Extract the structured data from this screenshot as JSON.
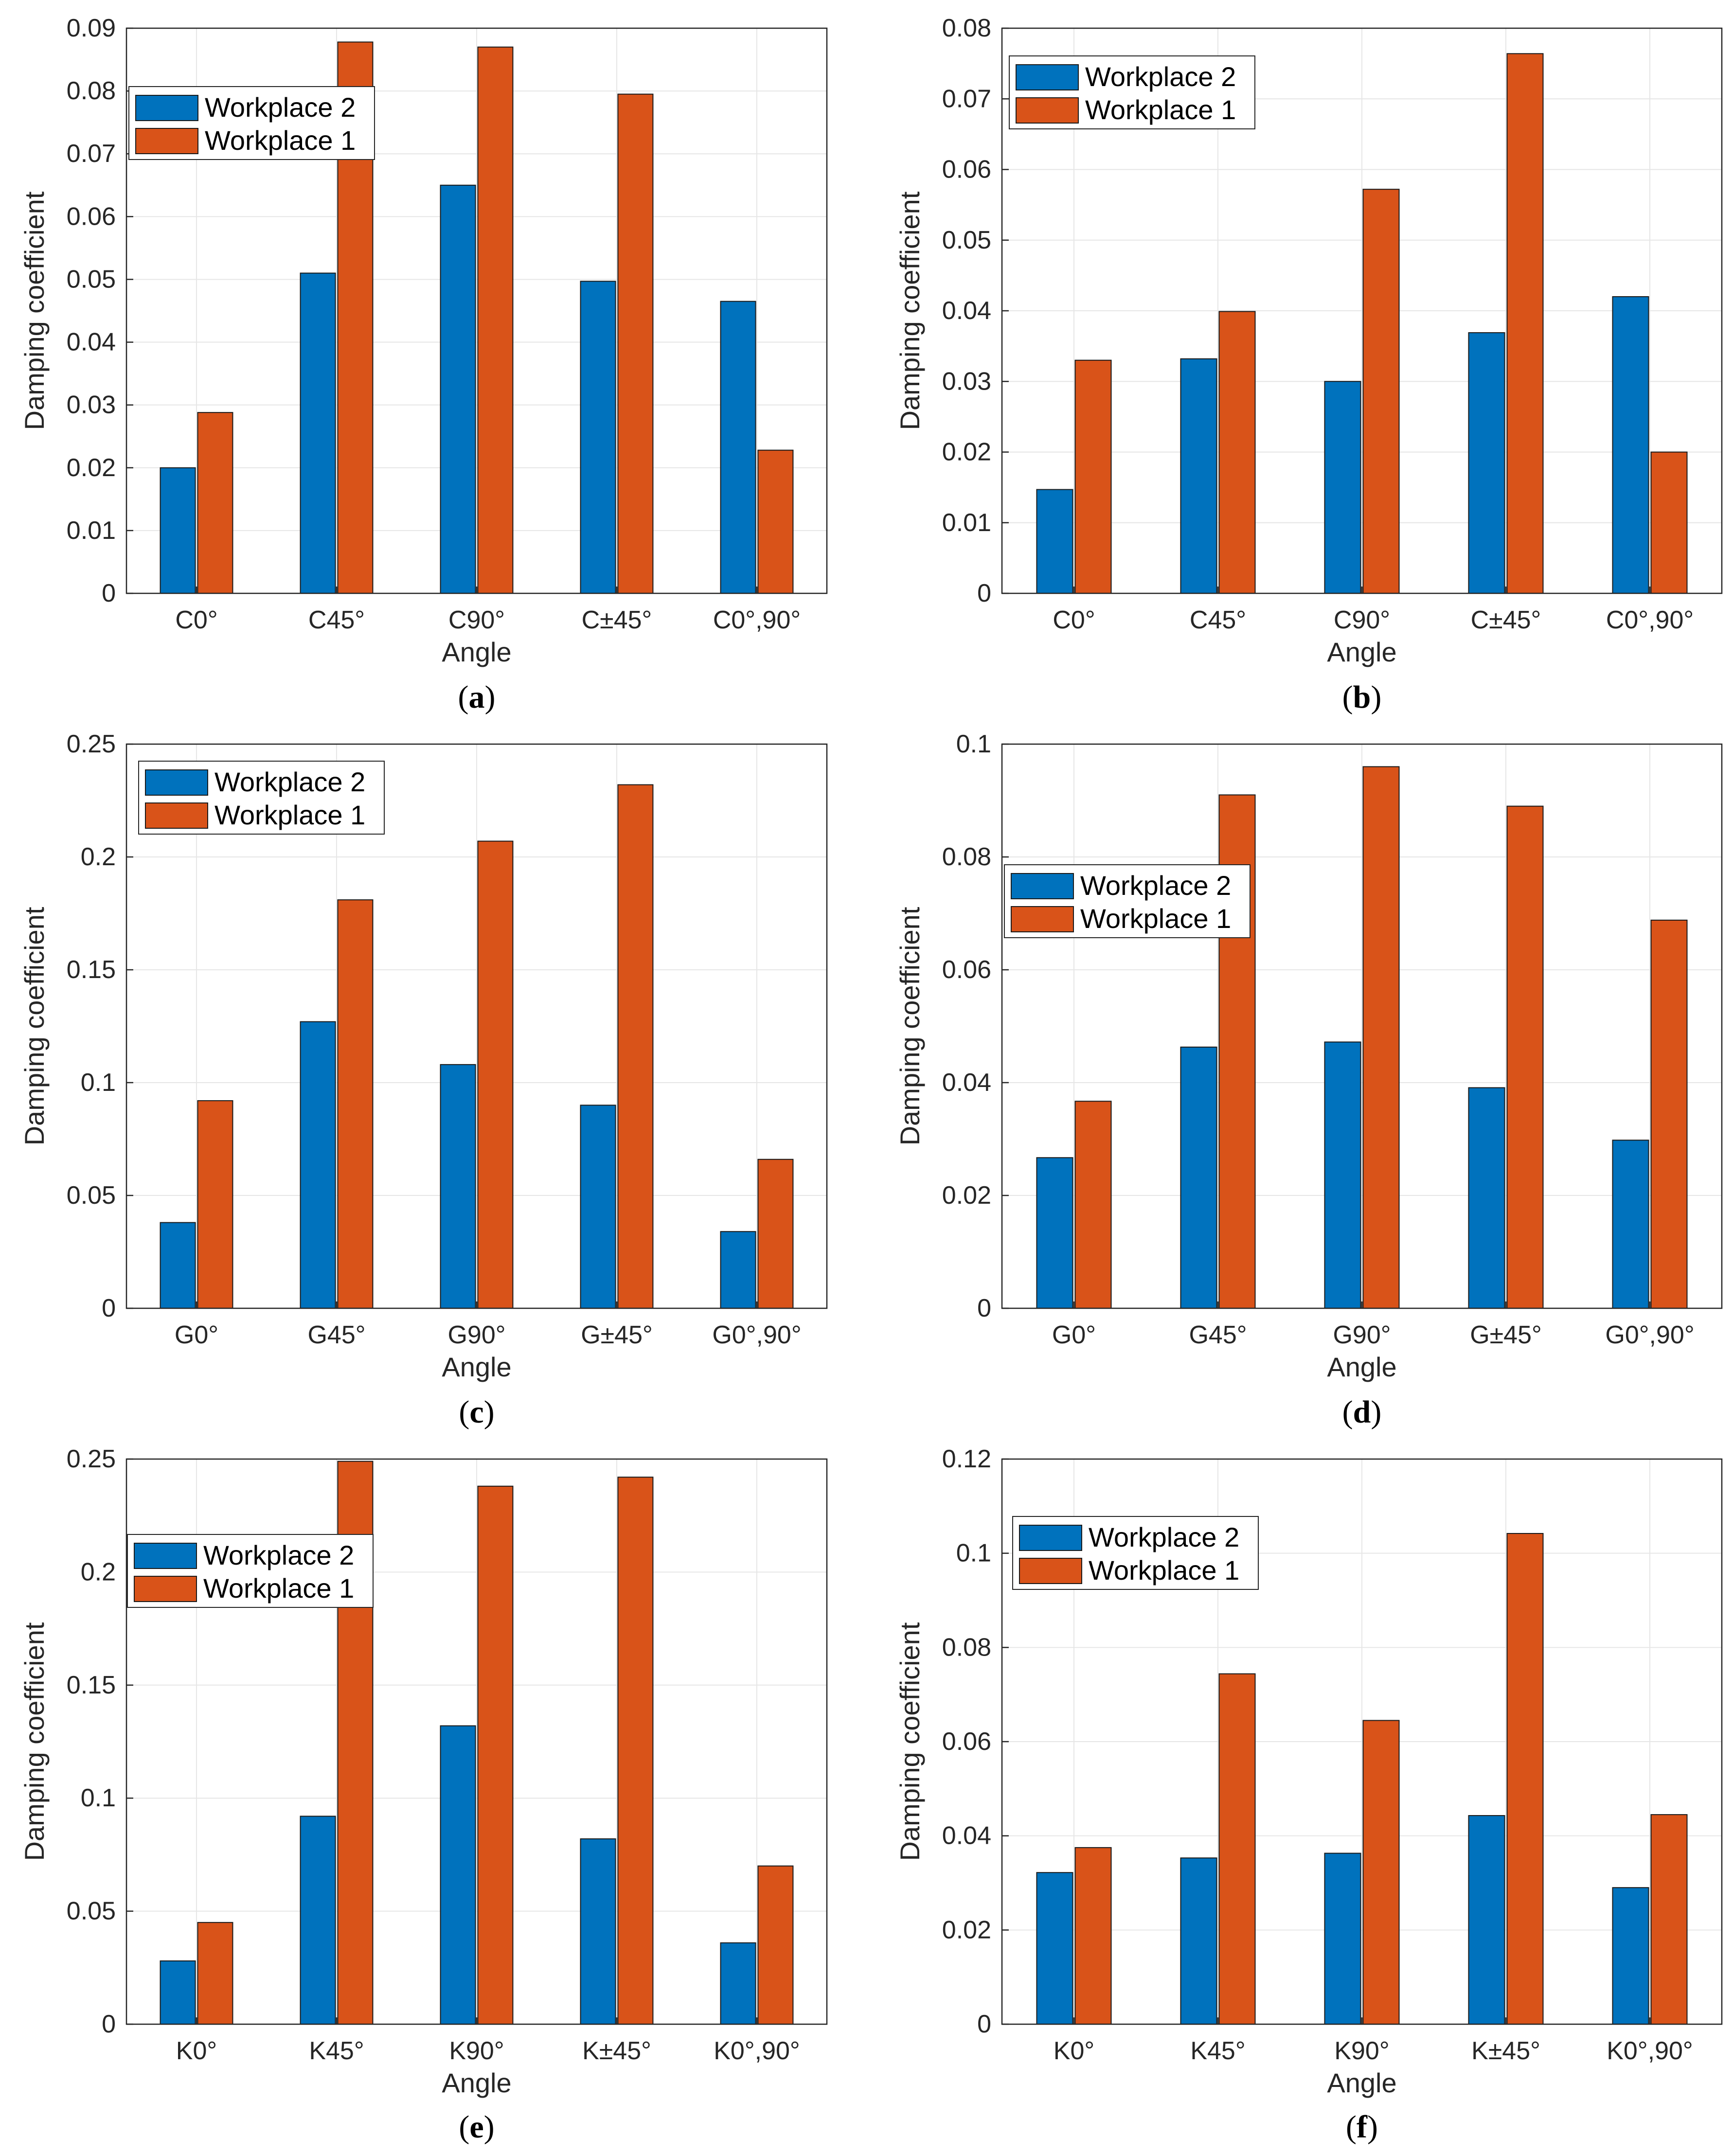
{
  "colors": {
    "workplace_2": "#0072BD",
    "workplace_1": "#D95319",
    "grid": "#e6e6e6",
    "axis": "#262626",
    "text": "#262626"
  },
  "chart_data": [
    {
      "panel": "a",
      "caption_letter": "a",
      "type": "bar",
      "xlabel": "Angle",
      "ylabel": "Damping coefficient",
      "categories": [
        "C0°",
        "C45°",
        "C90°",
        "C±45°",
        "C0°,90°"
      ],
      "series": [
        {
          "name": "Workplace 2",
          "values": [
            0.02,
            0.051,
            0.065,
            0.0497,
            0.0465
          ]
        },
        {
          "name": "Workplace 1",
          "values": [
            0.0288,
            0.0878,
            0.087,
            0.0795,
            0.0228
          ]
        }
      ],
      "ylim": [
        0,
        0.09
      ],
      "yticks": [
        0,
        0.01,
        0.02,
        0.03,
        0.04,
        0.05,
        0.06,
        0.07,
        0.08,
        0.09
      ],
      "ytick_labels": [
        "0",
        "0.01",
        "0.02",
        "0.03",
        "0.04",
        "0.05",
        "0.06",
        "0.07",
        "0.08",
        "0.09"
      ],
      "legend": [
        "Workplace 2",
        "Workplace 1"
      ],
      "legend_position": "top-left",
      "grid": true
    },
    {
      "panel": "b",
      "caption_letter": "b",
      "type": "bar",
      "xlabel": "Angle",
      "ylabel": "Damping coefficient",
      "categories": [
        "C0°",
        "C45°",
        "C90°",
        "C±45°",
        "C0°,90°"
      ],
      "series": [
        {
          "name": "Workplace 2",
          "values": [
            0.0147,
            0.0332,
            0.03,
            0.0369,
            0.042
          ]
        },
        {
          "name": "Workplace 1",
          "values": [
            0.033,
            0.0399,
            0.0572,
            0.0764,
            0.02
          ]
        }
      ],
      "ylim": [
        0,
        0.08
      ],
      "yticks": [
        0,
        0.01,
        0.02,
        0.03,
        0.04,
        0.05,
        0.06,
        0.07,
        0.08
      ],
      "ytick_labels": [
        "0",
        "0.01",
        "0.02",
        "0.03",
        "0.04",
        "0.05",
        "0.06",
        "0.07",
        "0.08"
      ],
      "legend": [
        "Workplace 2",
        "Workplace 1"
      ],
      "legend_position": "top-left",
      "grid": true
    },
    {
      "panel": "c",
      "caption_letter": "c",
      "type": "bar",
      "xlabel": "Angle",
      "ylabel": "Damping coefficient",
      "categories": [
        "G0°",
        "G45°",
        "G90°",
        "G±45°",
        "G0°,90°"
      ],
      "series": [
        {
          "name": "Workplace 2",
          "values": [
            0.038,
            0.127,
            0.108,
            0.09,
            0.034
          ]
        },
        {
          "name": "Workplace 1",
          "values": [
            0.092,
            0.181,
            0.207,
            0.232,
            0.066
          ]
        }
      ],
      "ylim": [
        0,
        0.25
      ],
      "yticks": [
        0,
        0.05,
        0.1,
        0.15,
        0.2,
        0.25
      ],
      "ytick_labels": [
        "0",
        "0.05",
        "0.1",
        "0.15",
        "0.2",
        "0.25"
      ],
      "legend": [
        "Workplace 2",
        "Workplace 1"
      ],
      "legend_position": "top-left",
      "grid": true
    },
    {
      "panel": "d",
      "caption_letter": "d",
      "type": "bar",
      "xlabel": "Angle",
      "ylabel": "Damping coefficient",
      "categories": [
        "G0°",
        "G45°",
        "G90°",
        "G±45°",
        "G0°,90°"
      ],
      "series": [
        {
          "name": "Workplace 2",
          "values": [
            0.0267,
            0.0463,
            0.0472,
            0.0391,
            0.0298
          ]
        },
        {
          "name": "Workplace 1",
          "values": [
            0.0367,
            0.091,
            0.096,
            0.089,
            0.0688
          ]
        }
      ],
      "ylim": [
        0,
        0.1
      ],
      "yticks": [
        0,
        0.02,
        0.04,
        0.06,
        0.08,
        0.1
      ],
      "ytick_labels": [
        "0",
        "0.02",
        "0.04",
        "0.06",
        "0.08",
        "0.1"
      ],
      "legend": [
        "Workplace 2",
        "Workplace 1"
      ],
      "legend_position": "middle-left",
      "grid": true
    },
    {
      "panel": "e",
      "caption_letter": "e",
      "type": "bar",
      "xlabel": "Angle",
      "ylabel": "Damping coefficient",
      "categories": [
        "K0°",
        "K45°",
        "K90°",
        "K±45°",
        "K0°,90°"
      ],
      "series": [
        {
          "name": "Workplace 2",
          "values": [
            0.028,
            0.092,
            0.132,
            0.082,
            0.036
          ]
        },
        {
          "name": "Workplace 1",
          "values": [
            0.045,
            0.249,
            0.238,
            0.242,
            0.07
          ]
        }
      ],
      "ylim": [
        0,
        0.25
      ],
      "yticks": [
        0,
        0.05,
        0.1,
        0.15,
        0.2,
        0.25
      ],
      "ytick_labels": [
        "0",
        "0.05",
        "0.1",
        "0.15",
        "0.2",
        "0.25"
      ],
      "legend": [
        "Workplace 2",
        "Workplace 1"
      ],
      "legend_position": "upper-left",
      "grid": true
    },
    {
      "panel": "f",
      "caption_letter": "f",
      "type": "bar",
      "xlabel": "Angle",
      "ylabel": "Damping coefficient",
      "categories": [
        "K0°",
        "K45°",
        "K90°",
        "K±45°",
        "K0°,90°"
      ],
      "series": [
        {
          "name": "Workplace 2",
          "values": [
            0.0322,
            0.0353,
            0.0363,
            0.0443,
            0.029
          ]
        },
        {
          "name": "Workplace 1",
          "values": [
            0.0375,
            0.0744,
            0.0645,
            0.1042,
            0.0445
          ]
        }
      ],
      "ylim": [
        0,
        0.12
      ],
      "yticks": [
        0,
        0.02,
        0.04,
        0.06,
        0.08,
        0.1,
        0.12
      ],
      "ytick_labels": [
        "0",
        "0.02",
        "0.04",
        "0.06",
        "0.08",
        "0.1",
        "0.12"
      ],
      "legend": [
        "Workplace 2",
        "Workplace 1"
      ],
      "legend_position": "top-left",
      "grid": true
    }
  ]
}
